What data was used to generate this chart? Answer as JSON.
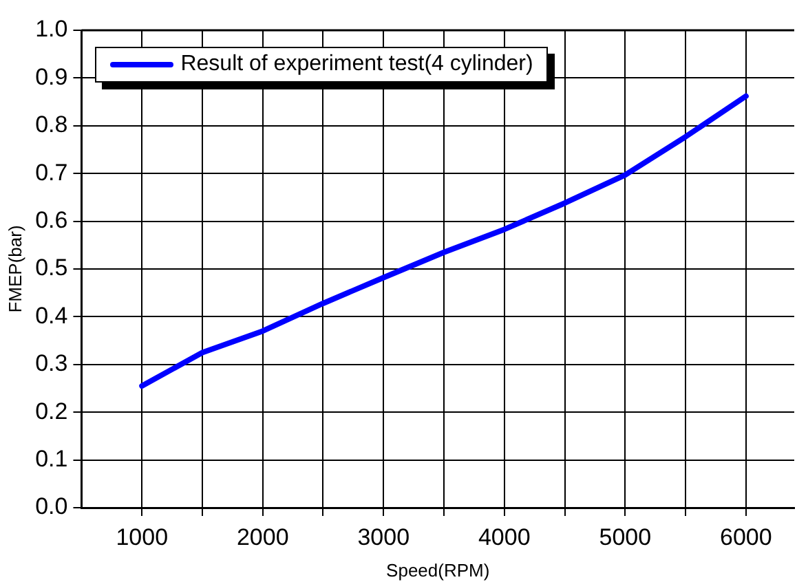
{
  "chart_data": {
    "type": "line",
    "xlabel": "Speed(RPM)",
    "ylabel": "FMEP(bar)",
    "x": [
      1000,
      1500,
      2000,
      2500,
      3000,
      3500,
      4000,
      4500,
      5000,
      5500,
      6000
    ],
    "series": [
      {
        "name": "Result of experiment test(4 cylinder)",
        "color": "#0000ff",
        "values": [
          0.255,
          0.325,
          0.37,
          0.428,
          0.482,
          0.535,
          0.583,
          0.638,
          0.697,
          0.777,
          0.862
        ]
      }
    ],
    "xlim": [
      500,
      6400
    ],
    "xticks": [
      1000,
      {
        "value": 1500,
        "label": null
      },
      2000,
      {
        "value": 2500,
        "label": null
      },
      3000,
      {
        "value": 3500,
        "label": null
      },
      4000,
      {
        "value": 4500,
        "label": null
      },
      5000,
      {
        "value": 5500,
        "label": null
      },
      6000
    ],
    "ylim": [
      0,
      1
    ],
    "yticks": [
      {
        "value": 0,
        "label": "0.0"
      },
      0.1,
      0.2,
      0.3,
      0.4,
      0.5,
      0.6,
      0.7,
      0.8,
      0.9,
      {
        "value": 1,
        "label": "1.0"
      }
    ],
    "grid": true,
    "legend": "top left",
    "marker": "none",
    "line_style": "solid"
  }
}
